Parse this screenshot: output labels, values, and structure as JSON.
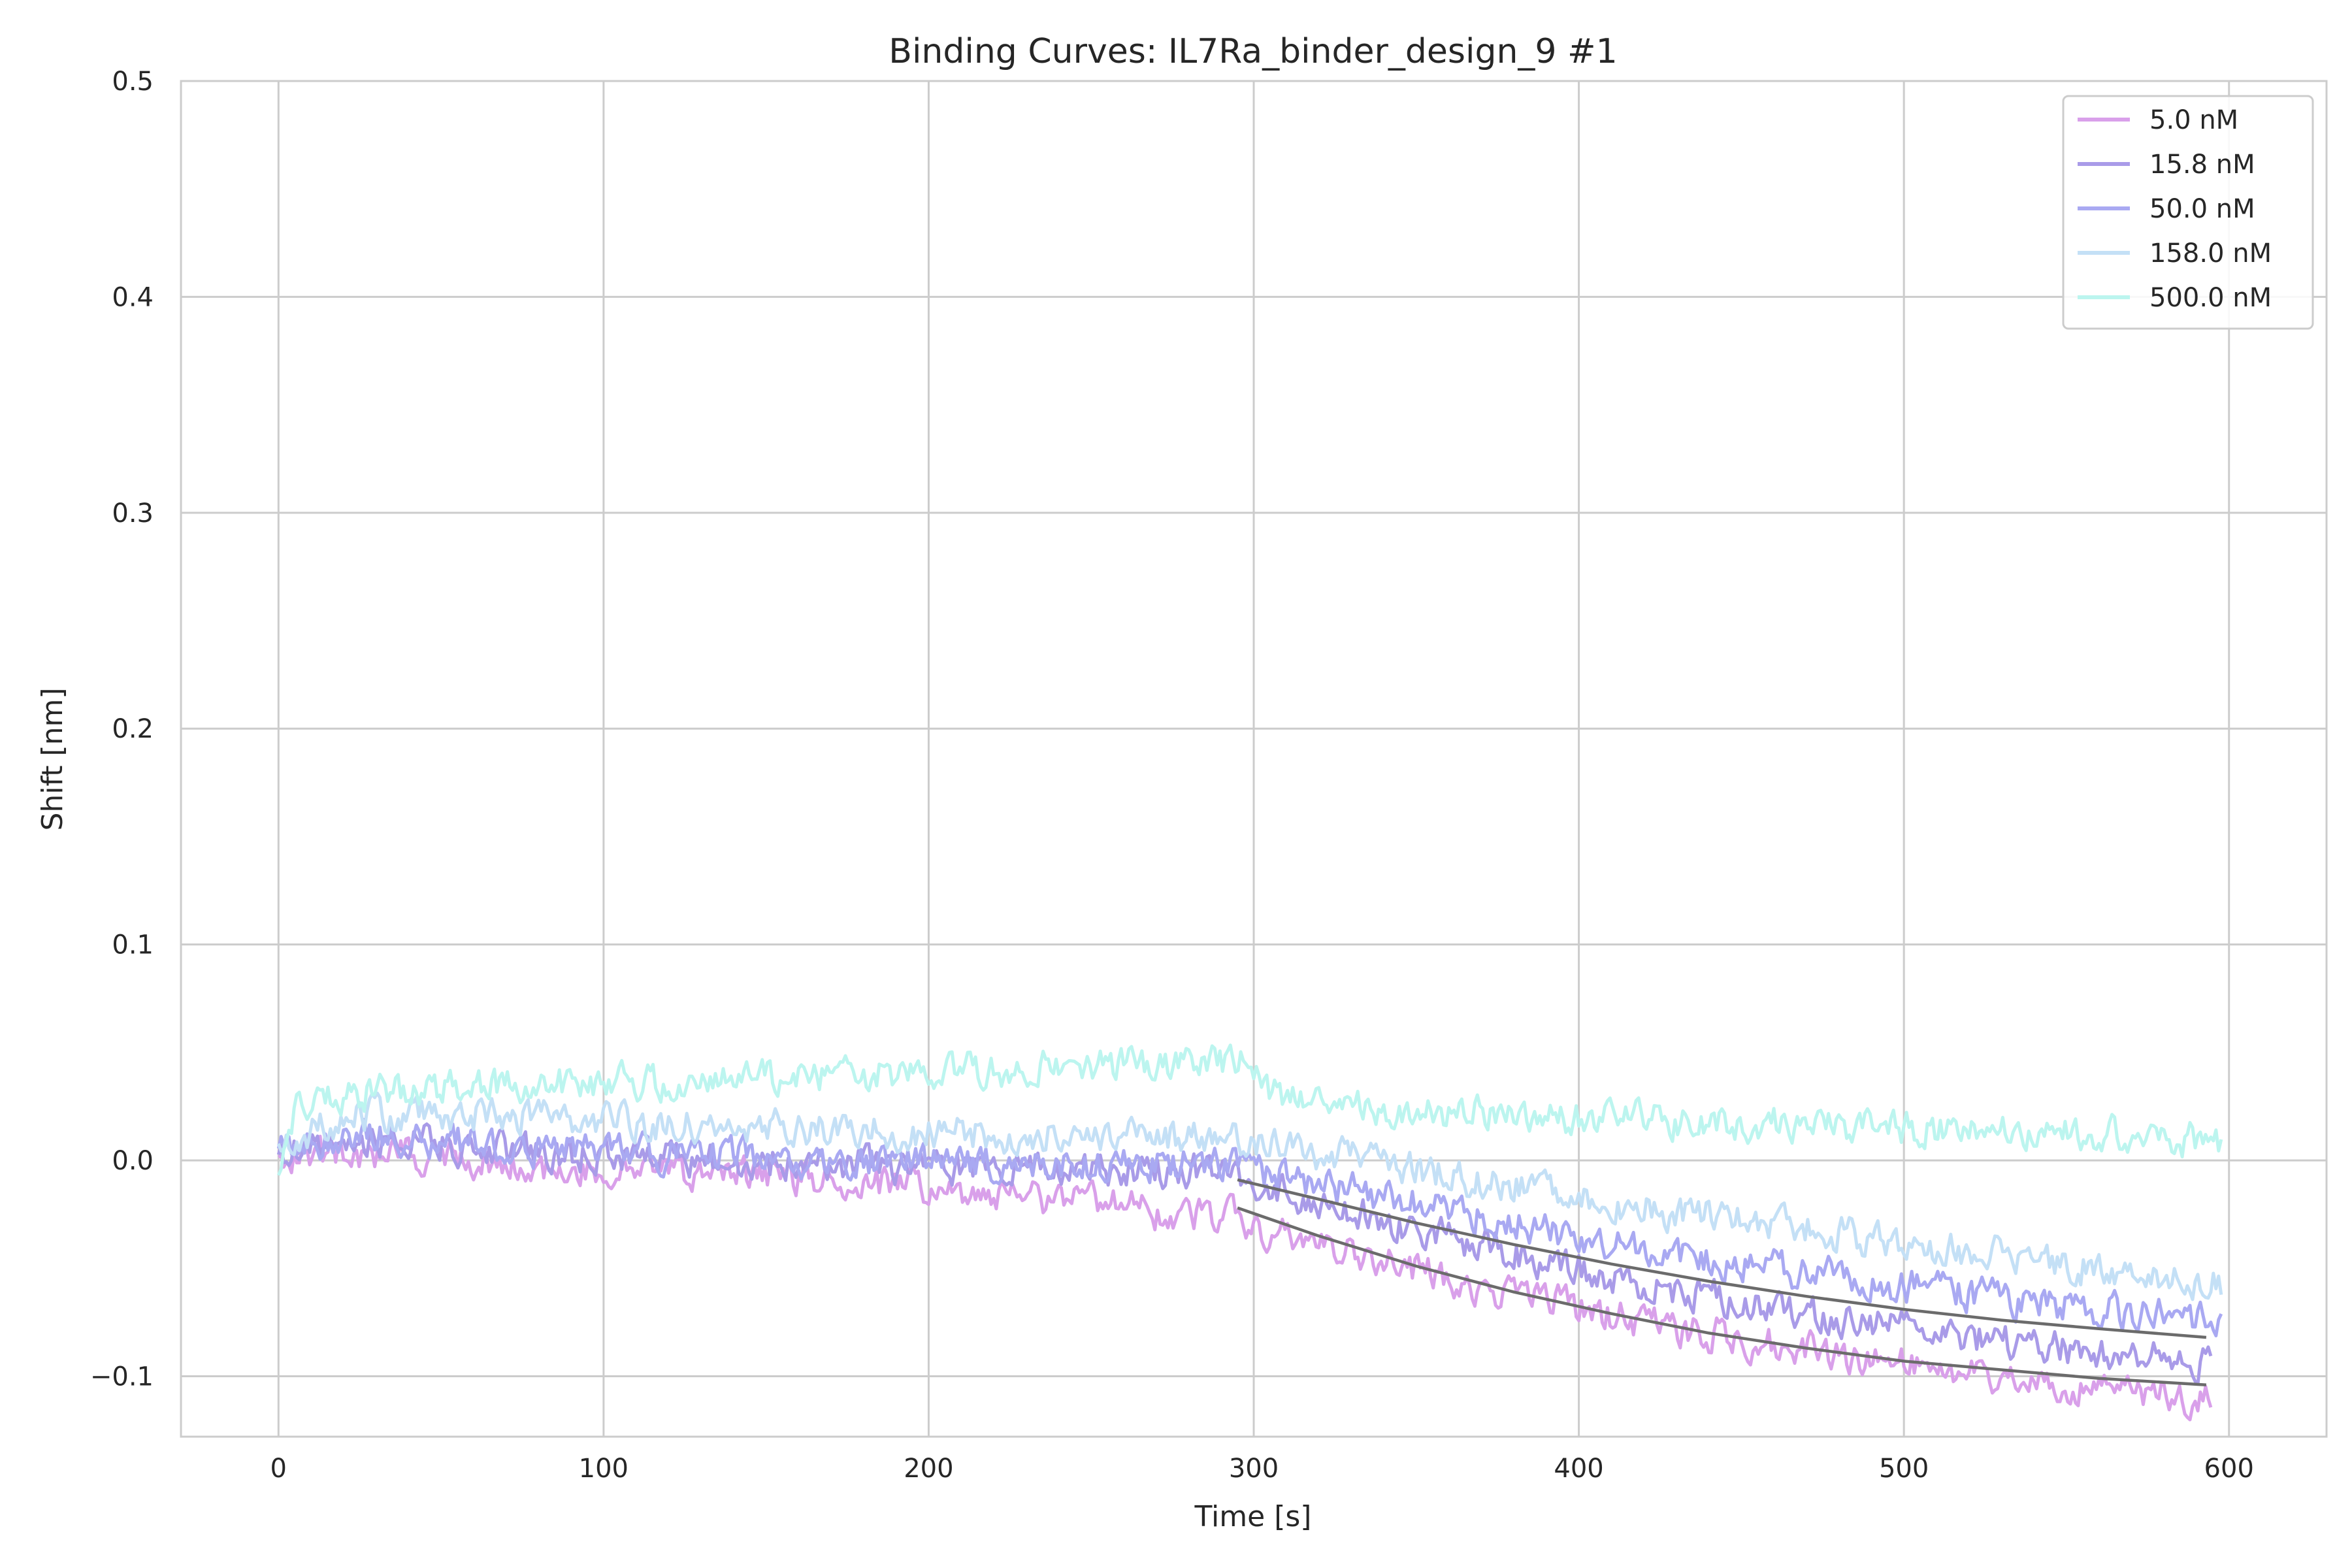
{
  "chart_data": {
    "type": "line",
    "title": "Binding Curves: IL7Ra_binder_design_9 #1",
    "xlabel": "Time [s]",
    "ylabel": "Shift [nm]",
    "xlim": [
      -30,
      630
    ],
    "ylim": [
      -0.128,
      0.5
    ],
    "x_ticks": [
      0,
      100,
      200,
      300,
      400,
      500,
      600
    ],
    "x_tick_labels": [
      "0",
      "100",
      "200",
      "300",
      "400",
      "500",
      "600"
    ],
    "y_ticks": [
      -0.1,
      0.0,
      0.1,
      0.2,
      0.3,
      0.4,
      0.5
    ],
    "y_tick_labels": [
      "−0.1",
      "0.0",
      "0.1",
      "0.2",
      "0.3",
      "0.4",
      "0.5"
    ],
    "grid": true,
    "legend_position": "top-right",
    "series": [
      {
        "name": "5.0 nM",
        "color": "#d9a0ea",
        "points": [
          [
            0,
            0.0
          ],
          [
            20,
            0.004
          ],
          [
            40,
            0.003
          ],
          [
            60,
            0.0
          ],
          [
            80,
            -0.004
          ],
          [
            100,
            -0.004
          ],
          [
            120,
            -0.005
          ],
          [
            140,
            -0.006
          ],
          [
            160,
            -0.008
          ],
          [
            180,
            -0.011
          ],
          [
            200,
            -0.014
          ],
          [
            220,
            -0.016
          ],
          [
            240,
            -0.018
          ],
          [
            260,
            -0.022
          ],
          [
            280,
            -0.025
          ],
          [
            295,
            -0.027
          ],
          [
            300,
            -0.032
          ],
          [
            320,
            -0.04
          ],
          [
            340,
            -0.047
          ],
          [
            360,
            -0.055
          ],
          [
            380,
            -0.062
          ],
          [
            400,
            -0.069
          ],
          [
            420,
            -0.075
          ],
          [
            440,
            -0.08
          ],
          [
            460,
            -0.085
          ],
          [
            480,
            -0.09
          ],
          [
            500,
            -0.094
          ],
          [
            520,
            -0.098
          ],
          [
            540,
            -0.102
          ],
          [
            560,
            -0.106
          ],
          [
            580,
            -0.109
          ],
          [
            595,
            -0.111
          ]
        ]
      },
      {
        "name": "15.8 nM",
        "color": "#a99be8",
        "points": [
          [
            0,
            0.002
          ],
          [
            20,
            0.01
          ],
          [
            40,
            0.009
          ],
          [
            60,
            0.006
          ],
          [
            80,
            0.003
          ],
          [
            100,
            0.002
          ],
          [
            120,
            0.001
          ],
          [
            140,
            0.0
          ],
          [
            160,
            -0.001
          ],
          [
            180,
            -0.002
          ],
          [
            200,
            -0.003
          ],
          [
            220,
            -0.003
          ],
          [
            240,
            -0.004
          ],
          [
            260,
            -0.005
          ],
          [
            280,
            -0.005
          ],
          [
            295,
            -0.006
          ],
          [
            300,
            -0.012
          ],
          [
            320,
            -0.02
          ],
          [
            340,
            -0.028
          ],
          [
            360,
            -0.036
          ],
          [
            380,
            -0.043
          ],
          [
            400,
            -0.05
          ],
          [
            420,
            -0.057
          ],
          [
            440,
            -0.063
          ],
          [
            460,
            -0.068
          ],
          [
            480,
            -0.073
          ],
          [
            500,
            -0.078
          ],
          [
            520,
            -0.082
          ],
          [
            540,
            -0.086
          ],
          [
            560,
            -0.089
          ],
          [
            580,
            -0.092
          ],
          [
            595,
            -0.094
          ]
        ]
      },
      {
        "name": "50.0 nM",
        "color": "#a9a9f2",
        "points": [
          [
            0,
            0.004
          ],
          [
            20,
            0.011
          ],
          [
            40,
            0.011
          ],
          [
            60,
            0.008
          ],
          [
            80,
            0.005
          ],
          [
            100,
            0.004
          ],
          [
            120,
            0.003
          ],
          [
            140,
            0.002
          ],
          [
            160,
            0.001
          ],
          [
            180,
            0.0
          ],
          [
            200,
            0.0
          ],
          [
            220,
            -0.001
          ],
          [
            240,
            -0.001
          ],
          [
            260,
            -0.002
          ],
          [
            280,
            -0.002
          ],
          [
            295,
            -0.002
          ],
          [
            300,
            -0.005
          ],
          [
            320,
            -0.011
          ],
          [
            340,
            -0.017
          ],
          [
            360,
            -0.023
          ],
          [
            380,
            -0.029
          ],
          [
            400,
            -0.035
          ],
          [
            420,
            -0.04
          ],
          [
            440,
            -0.045
          ],
          [
            460,
            -0.05
          ],
          [
            480,
            -0.054
          ],
          [
            500,
            -0.058
          ],
          [
            520,
            -0.062
          ],
          [
            540,
            -0.066
          ],
          [
            560,
            -0.069
          ],
          [
            580,
            -0.072
          ],
          [
            598,
            -0.074
          ]
        ]
      },
      {
        "name": "158.0 nM",
        "color": "#c4e0f6",
        "points": [
          [
            0,
            0.008
          ],
          [
            20,
            0.02
          ],
          [
            40,
            0.022
          ],
          [
            60,
            0.021
          ],
          [
            80,
            0.019
          ],
          [
            100,
            0.018
          ],
          [
            120,
            0.017
          ],
          [
            140,
            0.016
          ],
          [
            160,
            0.015
          ],
          [
            180,
            0.014
          ],
          [
            200,
            0.013
          ],
          [
            220,
            0.012
          ],
          [
            240,
            0.011
          ],
          [
            260,
            0.011
          ],
          [
            280,
            0.01
          ],
          [
            295,
            0.01
          ],
          [
            300,
            0.008
          ],
          [
            320,
            0.003
          ],
          [
            340,
            -0.002
          ],
          [
            360,
            -0.007
          ],
          [
            380,
            -0.012
          ],
          [
            400,
            -0.017
          ],
          [
            420,
            -0.022
          ],
          [
            440,
            -0.026
          ],
          [
            460,
            -0.03
          ],
          [
            480,
            -0.034
          ],
          [
            500,
            -0.038
          ],
          [
            520,
            -0.042
          ],
          [
            540,
            -0.046
          ],
          [
            560,
            -0.05
          ],
          [
            580,
            -0.054
          ],
          [
            598,
            -0.057
          ]
        ]
      },
      {
        "name": "500.0 nM",
        "color": "#bcf5ef",
        "points": [
          [
            0,
            0.0
          ],
          [
            5,
            0.022
          ],
          [
            20,
            0.03
          ],
          [
            40,
            0.033
          ],
          [
            60,
            0.034
          ],
          [
            80,
            0.035
          ],
          [
            100,
            0.036
          ],
          [
            120,
            0.037
          ],
          [
            140,
            0.038
          ],
          [
            160,
            0.039
          ],
          [
            180,
            0.04
          ],
          [
            200,
            0.041
          ],
          [
            220,
            0.042
          ],
          [
            240,
            0.043
          ],
          [
            260,
            0.044
          ],
          [
            280,
            0.045
          ],
          [
            295,
            0.046
          ],
          [
            298,
            0.044
          ],
          [
            303,
            0.032
          ],
          [
            320,
            0.027
          ],
          [
            340,
            0.024
          ],
          [
            360,
            0.022
          ],
          [
            380,
            0.021
          ],
          [
            400,
            0.02
          ],
          [
            420,
            0.019
          ],
          [
            440,
            0.018
          ],
          [
            460,
            0.017
          ],
          [
            480,
            0.016
          ],
          [
            500,
            0.015
          ],
          [
            520,
            0.014
          ],
          [
            540,
            0.013
          ],
          [
            560,
            0.012
          ],
          [
            580,
            0.01
          ],
          [
            598,
            0.009
          ]
        ]
      }
    ],
    "fits": [
      {
        "color": "#6b6b6b",
        "points": [
          [
            295,
            -0.009
          ],
          [
            320,
            -0.018
          ],
          [
            350,
            -0.029
          ],
          [
            380,
            -0.039
          ],
          [
            410,
            -0.048
          ],
          [
            440,
            -0.056
          ],
          [
            470,
            -0.063
          ],
          [
            500,
            -0.069
          ],
          [
            530,
            -0.074
          ],
          [
            560,
            -0.078
          ],
          [
            593,
            -0.082
          ]
        ]
      },
      {
        "color": "#6b6b6b",
        "points": [
          [
            295,
            -0.022
          ],
          [
            320,
            -0.035
          ],
          [
            350,
            -0.049
          ],
          [
            380,
            -0.061
          ],
          [
            410,
            -0.071
          ],
          [
            440,
            -0.08
          ],
          [
            470,
            -0.087
          ],
          [
            500,
            -0.093
          ],
          [
            530,
            -0.097
          ],
          [
            560,
            -0.101
          ],
          [
            593,
            -0.104
          ]
        ]
      }
    ]
  }
}
